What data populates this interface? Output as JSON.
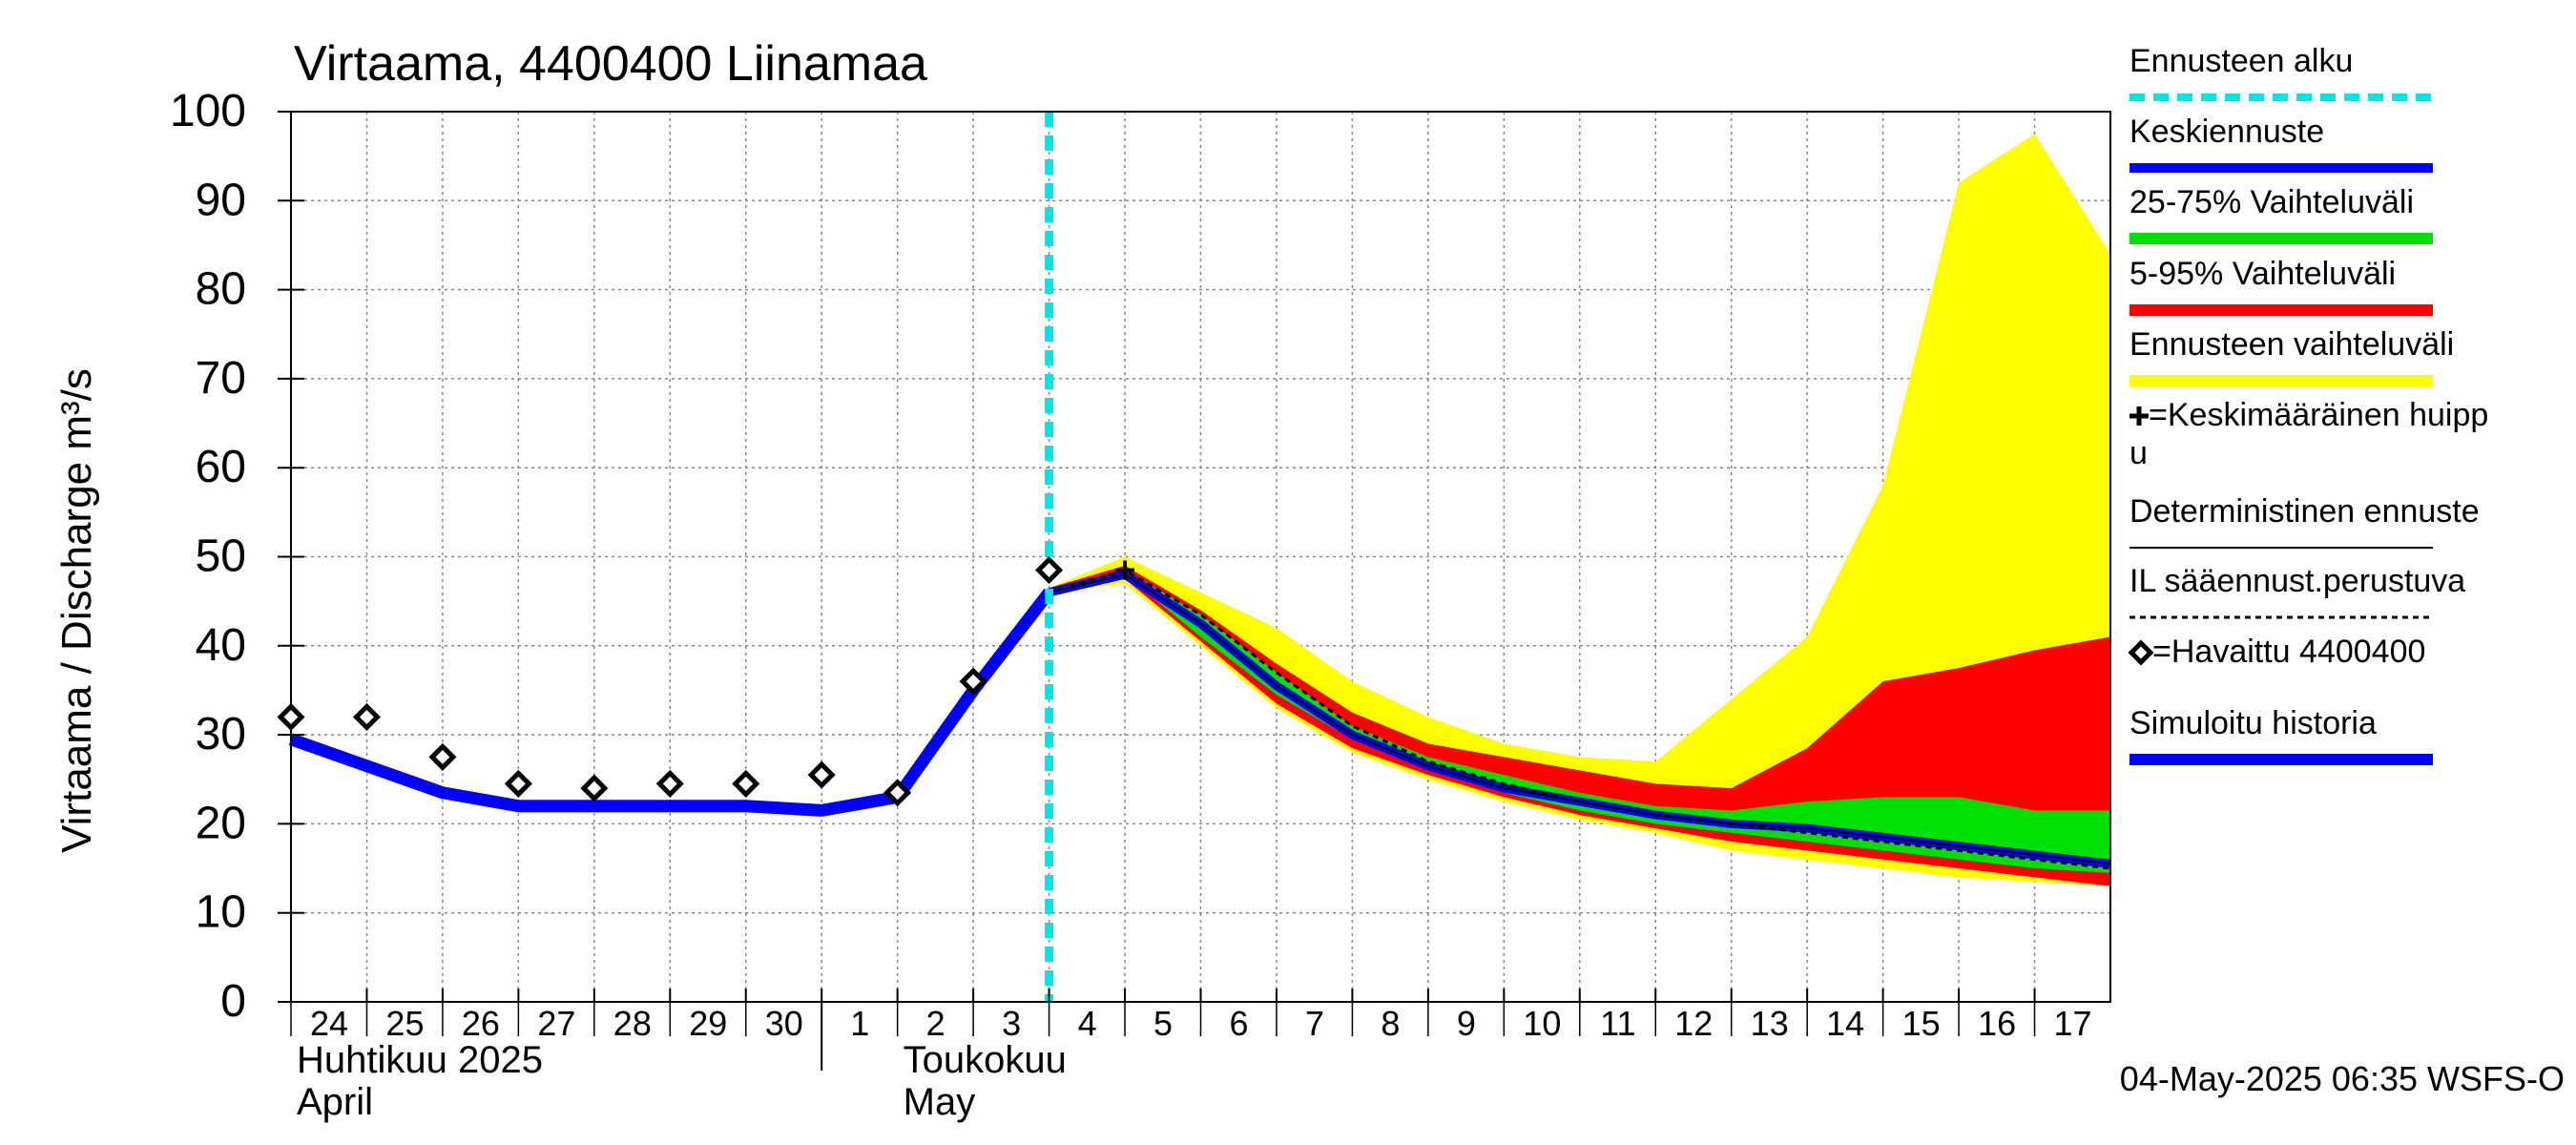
{
  "chart_data": {
    "type": "area",
    "title": "Virtaama, 4400400 Liinamaa",
    "ylabel": "Virtaama / Discharge    m³/s",
    "ylim": [
      0,
      100
    ],
    "yticks": [
      "0",
      "10",
      "20",
      "30",
      "40",
      "50",
      "60",
      "70",
      "80",
      "90",
      "100"
    ],
    "day_ticks": [
      "24",
      "25",
      "26",
      "27",
      "28",
      "29",
      "30",
      "1",
      "2",
      "3",
      "4",
      "5",
      "6",
      "7",
      "8",
      "9",
      "10",
      "11",
      "12",
      "13",
      "14",
      "15",
      "16",
      "17"
    ],
    "month_labels": [
      {
        "line1": "Huhtikuu  2025",
        "line2": "April",
        "day": 24
      },
      {
        "line1": "Toukokuu",
        "line2": "May",
        "day": 32
      }
    ],
    "forecast_start_day": 34,
    "grid": true,
    "legend_position": "right",
    "legend": [
      {
        "label": "Ennusteen alku",
        "color": "#00e5e5",
        "style": "dashed"
      },
      {
        "label": "Keskiennuste",
        "color": "#0000ff",
        "style": "solid"
      },
      {
        "label": "25-75% Vaihteluväli",
        "color": "#00e000",
        "style": "band"
      },
      {
        "label": "5-95% Vaihteluväli",
        "color": "#ff0000",
        "style": "band"
      },
      {
        "label": "Ennusteen vaihteluväli",
        "color": "#ffff00",
        "style": "band"
      },
      {
        "label": "=Keskimääräinen huipp u",
        "color": "#000000",
        "style": "plus"
      },
      {
        "label": "Deterministinen ennuste",
        "color": "#000000",
        "style": "thin"
      },
      {
        "label": "IL sääennust.perustuva",
        "color": "#000000",
        "style": "dotted"
      },
      {
        "label": "=Havaittu 4400400",
        "color": "#000000",
        "style": "diamond"
      },
      {
        "label": "Simuloitu historia",
        "color": "#0000ff",
        "style": "thick"
      }
    ],
    "timestamp": "04-May-2025 06:35 WSFS-O",
    "x_forecast": [
      34,
      35,
      36,
      37,
      38,
      39,
      40,
      41,
      42,
      43,
      44,
      45,
      46,
      47,
      48
    ],
    "ensemble_range": {
      "upper": [
        46.5,
        50,
        46,
        42,
        36,
        32,
        29,
        27.5,
        27,
        34,
        41,
        58,
        92,
        97.5,
        84
      ],
      "lower": [
        46,
        47,
        40,
        33,
        28,
        25,
        22.5,
        20.5,
        19,
        17,
        16,
        15,
        14,
        13.5,
        13
      ]
    },
    "band_5_95": {
      "upper": [
        46.5,
        49,
        44,
        38,
        32.5,
        29,
        27.5,
        26,
        24.5,
        24,
        28.5,
        36,
        37.5,
        39.5,
        41
      ],
      "lower": [
        46,
        47.5,
        40.5,
        33.5,
        28.5,
        25.5,
        23,
        21,
        19.5,
        18,
        17,
        16,
        15,
        14,
        13
      ]
    },
    "band_25_75": {
      "upper": [
        46.5,
        48.5,
        43.5,
        37,
        31,
        27.5,
        25.5,
        23.5,
        22,
        21.5,
        22.5,
        23,
        23,
        21.5,
        21.5
      ]
    },
    "band_25_75_lower": [
      46,
      48,
      41,
      34.5,
      29.5,
      26,
      23.5,
      21.5,
      20,
      19,
      18,
      17,
      16,
      15,
      14.5
    ],
    "series": [
      {
        "name": "Keskiennuste",
        "x": [
          34,
          35,
          36,
          37,
          38,
          39,
          40,
          41,
          42,
          43,
          44,
          45,
          46,
          47,
          48
        ],
        "values": [
          46,
          48,
          42.5,
          35.5,
          30,
          26.5,
          24,
          22.5,
          21,
          20,
          19.5,
          18.5,
          17.5,
          16.5,
          15.5
        ]
      },
      {
        "name": "IL sääennust.perustuva",
        "x": [
          34,
          35,
          36,
          37,
          38,
          39,
          40,
          41,
          42,
          43,
          44,
          45,
          46,
          47,
          48
        ],
        "values": [
          46,
          48.5,
          43.5,
          37,
          31,
          27,
          24.5,
          22.5,
          21,
          20,
          19,
          18,
          17,
          16,
          15
        ]
      },
      {
        "name": "Simuloitu historia",
        "x": [
          24,
          25,
          26,
          27,
          28,
          29,
          30,
          31,
          32,
          33,
          34
        ],
        "values": [
          29.5,
          26.5,
          23.5,
          22,
          22,
          22,
          22,
          21.5,
          23,
          35,
          46
        ]
      },
      {
        "name": "=Havaittu 4400400",
        "x": [
          24,
          25,
          26,
          27,
          28,
          29,
          30,
          31,
          32,
          33,
          34
        ],
        "values": [
          32,
          32,
          27.5,
          24.5,
          24,
          24.5,
          24.5,
          25.5,
          23.5,
          36,
          48.5
        ]
      }
    ],
    "peak_marker": {
      "x": 35,
      "y": 48.5
    }
  }
}
